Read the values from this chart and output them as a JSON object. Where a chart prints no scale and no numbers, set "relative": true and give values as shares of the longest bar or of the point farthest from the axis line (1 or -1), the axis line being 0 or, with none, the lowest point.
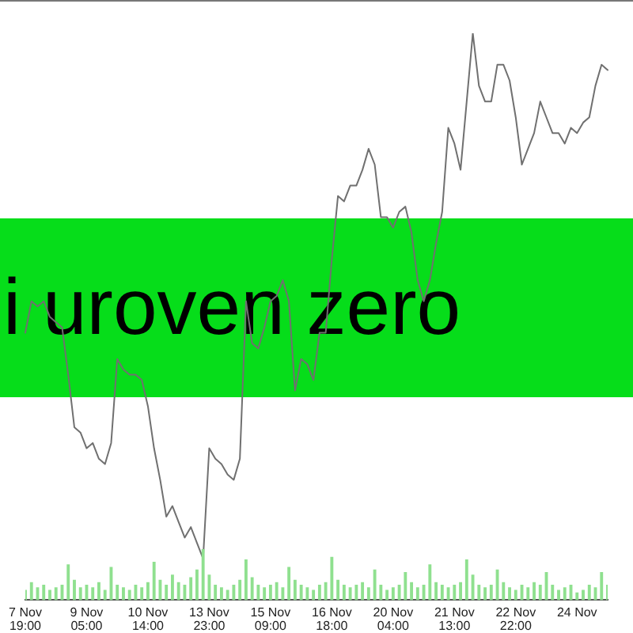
{
  "chart_data": [
    {
      "type": "line",
      "relative": true,
      "tick_labels": false,
      "annotations": [
        "i uroven zero"
      ],
      "categories": [
        null,
        null,
        null,
        null,
        null,
        null,
        null,
        null,
        null,
        null,
        null,
        null,
        null,
        null,
        null,
        null,
        null,
        null,
        null,
        null,
        null,
        null,
        null,
        null,
        null,
        null,
        null,
        null,
        null,
        null,
        null,
        null,
        null,
        null,
        null,
        null,
        null,
        null,
        null,
        null,
        null,
        null,
        null,
        null,
        null,
        null,
        null,
        null,
        null,
        null,
        null,
        null,
        null,
        null,
        null,
        null,
        null,
        null,
        null,
        null,
        null,
        null,
        null,
        null,
        null,
        null,
        null,
        null,
        null,
        null,
        null,
        null,
        null,
        null,
        null,
        null,
        null,
        null,
        null,
        null,
        null,
        null,
        null,
        null,
        null,
        null,
        null,
        null,
        null,
        null,
        null,
        null,
        null,
        null,
        null,
        null
      ],
      "series": [
        {
          "color": "#707070",
          "values": [
            0.43,
            0.49,
            0.48,
            0.49,
            0.46,
            0.45,
            0.44,
            0.35,
            0.25,
            0.24,
            0.21,
            0.22,
            0.19,
            0.18,
            0.22,
            0.38,
            0.36,
            0.35,
            0.35,
            0.34,
            0.29,
            0.21,
            0.15,
            0.08,
            0.1,
            0.07,
            0.04,
            0.06,
            0.03,
            0,
            0.21,
            0.19,
            0.18,
            0.16,
            0.15,
            0.19,
            0.49,
            0.41,
            0.4,
            0.44,
            0.49,
            0.5,
            0.53,
            0.49,
            0.32,
            0.38,
            0.37,
            0.34,
            0.43,
            0.43,
            0.57,
            0.69,
            0.68,
            0.71,
            0.71,
            0.74,
            0.78,
            0.75,
            0.65,
            0.65,
            0.63,
            0.66,
            0.67,
            0.62,
            0.53,
            0.49,
            0.53,
            0.6,
            0.66,
            0.82,
            0.79,
            0.74,
            0.87,
            1,
            0.9,
            0.87,
            0.87,
            0.94,
            0.94,
            0.91,
            0.84,
            0.75,
            0.78,
            0.81,
            0.87,
            0.84,
            0.81,
            0.81,
            0.79,
            0.82,
            0.81,
            0.83,
            0.84,
            0.9,
            0.94,
            0.93
          ]
        }
      ]
    },
    {
      "type": "bar",
      "relative": true,
      "tick_labels": "x",
      "color": "#8fe08f",
      "categories": [
        "7 Nov 19:00",
        null,
        null,
        null,
        null,
        null,
        null,
        null,
        null,
        null,
        "9 Nov 05:00",
        null,
        null,
        null,
        null,
        null,
        null,
        null,
        null,
        null,
        "10 Nov 14:00",
        null,
        null,
        null,
        null,
        null,
        null,
        null,
        null,
        null,
        "13 Nov 23:00",
        null,
        null,
        null,
        null,
        null,
        null,
        null,
        null,
        null,
        "15 Nov 09:00",
        null,
        null,
        null,
        null,
        null,
        null,
        null,
        null,
        null,
        "16 Nov 18:00",
        null,
        null,
        null,
        null,
        null,
        null,
        null,
        null,
        null,
        "20 Nov 04:00",
        null,
        null,
        null,
        null,
        null,
        null,
        null,
        null,
        null,
        "21 Nov 13:00",
        null,
        null,
        null,
        null,
        null,
        null,
        null,
        null,
        null,
        "22 Nov 22:00",
        null,
        null,
        null,
        null,
        null,
        null,
        null,
        null,
        null,
        "24 Nov",
        null,
        null,
        null,
        null,
        null
      ],
      "values": [
        0.2,
        0.35,
        0.25,
        0.3,
        0.2,
        0.25,
        0.3,
        0.7,
        0.4,
        0.25,
        0.3,
        0.25,
        0.35,
        0.2,
        0.65,
        0.3,
        0.25,
        0.2,
        0.3,
        0.25,
        0.35,
        0.75,
        0.4,
        0.3,
        0.5,
        0.35,
        0.3,
        0.45,
        0.6,
        1,
        0.5,
        0.3,
        0.25,
        0.2,
        0.3,
        0.4,
        0.8,
        0.45,
        0.3,
        0.25,
        0.3,
        0.35,
        0.25,
        0.65,
        0.4,
        0.3,
        0.25,
        0.2,
        0.3,
        0.35,
        0.85,
        0.4,
        0.3,
        0.25,
        0.3,
        0.35,
        0.25,
        0.6,
        0.3,
        0.2,
        0.25,
        0.3,
        0.55,
        0.35,
        0.25,
        0.3,
        0.7,
        0.35,
        0.3,
        0.25,
        0.3,
        0.35,
        0.8,
        0.5,
        0.3,
        0.25,
        0.3,
        0.6,
        0.35,
        0.25,
        0.2,
        0.3,
        0.25,
        0.35,
        0.3,
        0.55,
        0.3,
        0.2,
        0.25,
        0.3,
        0.15,
        0.2,
        0.3,
        0.25,
        0.55,
        0.3
      ]
    }
  ]
}
